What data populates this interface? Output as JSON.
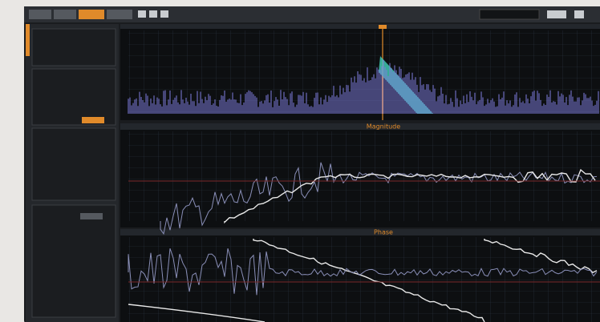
{
  "panels": [
    {
      "title": "Magnitude"
    },
    {
      "title": "Phase"
    }
  ]
}
